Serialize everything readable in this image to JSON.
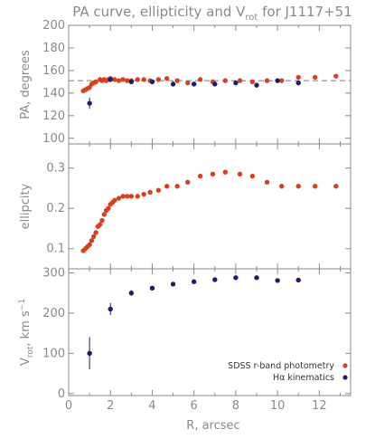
{
  "chart_data": [
    {
      "type": "scatter",
      "title": "PA curve, ellipticity and V",
      "title_sub": "rot",
      "title_tail": " for J1117+51",
      "ylabel": "PA, degrees",
      "xlim": [
        0,
        13.5
      ],
      "ylim": [
        95,
        200
      ],
      "yticks": [
        100,
        120,
        140,
        160,
        180,
        200
      ],
      "reference_line": {
        "y": 151,
        "style": "dashed"
      },
      "series": [
        {
          "name": "SDSS r-band photometry",
          "color": "#d9411e",
          "x": [
            0.7,
            0.8,
            0.9,
            1.0,
            1.1,
            1.2,
            1.3,
            1.5,
            1.6,
            1.7,
            1.8,
            1.9,
            2.0,
            2.2,
            2.4,
            2.6,
            2.8,
            3.0,
            3.3,
            3.6,
            3.9,
            4.3,
            4.7,
            5.2,
            5.7,
            6.3,
            6.9,
            7.5,
            8.2,
            8.8,
            9.5,
            10.2,
            11.0,
            11.8,
            12.8
          ],
          "y": [
            142,
            143,
            144,
            145,
            148,
            149,
            150,
            152,
            151,
            152,
            151,
            152,
            153,
            152,
            151,
            152,
            151,
            151,
            152,
            152,
            151,
            152,
            153,
            151,
            149,
            152,
            150,
            151,
            151,
            150,
            151,
            151,
            154,
            154,
            155
          ]
        },
        {
          "name": "Hα kinematics",
          "color": "#1a1f6b",
          "x": [
            1.0,
            2.0,
            3.0,
            4.0,
            5.0,
            6.0,
            7.0,
            8.0,
            9.0,
            10.0,
            11.0
          ],
          "y": [
            131,
            152,
            150,
            150,
            148,
            148,
            148,
            149,
            147,
            151,
            149
          ],
          "err": [
            5,
            2,
            1,
            1,
            1,
            1,
            1,
            1,
            1,
            1,
            1
          ]
        }
      ]
    },
    {
      "type": "scatter",
      "ylabel": "ellipcity",
      "xlim": [
        0,
        13.5
      ],
      "ylim": [
        0.05,
        0.36
      ],
      "yticks": [
        0.1,
        0.2,
        0.3
      ],
      "series": [
        {
          "name": "SDSS r-band photometry",
          "color": "#d9411e",
          "x": [
            0.7,
            0.8,
            0.9,
            1.0,
            1.1,
            1.2,
            1.3,
            1.4,
            1.5,
            1.6,
            1.7,
            1.8,
            1.9,
            2.0,
            2.1,
            2.2,
            2.4,
            2.6,
            2.8,
            3.0,
            3.3,
            3.6,
            3.9,
            4.3,
            4.7,
            5.2,
            5.7,
            6.3,
            6.9,
            7.5,
            8.2,
            8.8,
            9.5,
            10.2,
            11.0,
            11.8,
            12.8
          ],
          "y": [
            0.095,
            0.1,
            0.105,
            0.11,
            0.12,
            0.13,
            0.14,
            0.155,
            0.16,
            0.17,
            0.185,
            0.195,
            0.2,
            0.21,
            0.215,
            0.22,
            0.225,
            0.23,
            0.23,
            0.23,
            0.23,
            0.235,
            0.24,
            0.245,
            0.255,
            0.255,
            0.265,
            0.28,
            0.285,
            0.29,
            0.285,
            0.28,
            0.265,
            0.255,
            0.255,
            0.255,
            0.255
          ]
        }
      ]
    },
    {
      "type": "scatter",
      "ylabel": "V",
      "ylabel_sub": "rot",
      "ylabel_tail": ", km s",
      "ylabel_sup": "−1",
      "xlabel": "R, arcsec",
      "xlim": [
        0,
        13.5
      ],
      "ylim": [
        -5,
        310
      ],
      "yticks": [
        0,
        100,
        200,
        300
      ],
      "xticks": [
        0,
        2,
        4,
        6,
        8,
        10,
        12
      ],
      "series": [
        {
          "name": "Hα kinematics",
          "color": "#1a1f6b",
          "x": [
            1.0,
            2.0,
            3.0,
            4.0,
            5.0,
            6.0,
            7.0,
            8.0,
            9.0,
            10.0,
            11.0
          ],
          "y": [
            100,
            210,
            250,
            262,
            272,
            278,
            283,
            288,
            288,
            281,
            282
          ],
          "err": [
            40,
            15,
            7,
            5,
            4,
            4,
            4,
            4,
            4,
            4,
            4
          ]
        }
      ]
    }
  ],
  "legend": {
    "placement": "bottom-right",
    "entries": [
      {
        "label": "SDSS r-band photometry",
        "color": "#d9411e"
      },
      {
        "label": "Hα kinematics",
        "color": "#1a1f6b"
      }
    ]
  }
}
